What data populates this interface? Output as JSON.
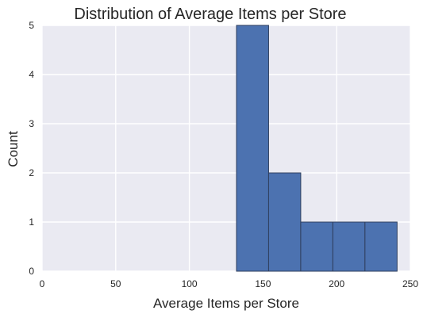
{
  "chart_data": {
    "type": "bar",
    "title": "Distribution of Average Items per Store",
    "xlabel": "Average Items per Store",
    "ylabel": "Count",
    "xlim": [
      0,
      250
    ],
    "ylim": [
      0,
      5
    ],
    "xticks": [
      0,
      50,
      100,
      150,
      200,
      250
    ],
    "yticks": [
      0,
      1,
      2,
      3,
      4,
      5
    ],
    "grid": true,
    "bins": [
      {
        "start": 132,
        "end": 153.8,
        "count": 5
      },
      {
        "start": 153.8,
        "end": 175.6,
        "count": 2
      },
      {
        "start": 175.6,
        "end": 197.4,
        "count": 1
      },
      {
        "start": 197.4,
        "end": 219.2,
        "count": 1
      },
      {
        "start": 219.2,
        "end": 241,
        "count": 1
      }
    ],
    "colors": {
      "background": "#eaeaf2",
      "bar": "#4c72b0",
      "bar_edge": "#2f3f5e",
      "grid": "#ffffff"
    }
  }
}
